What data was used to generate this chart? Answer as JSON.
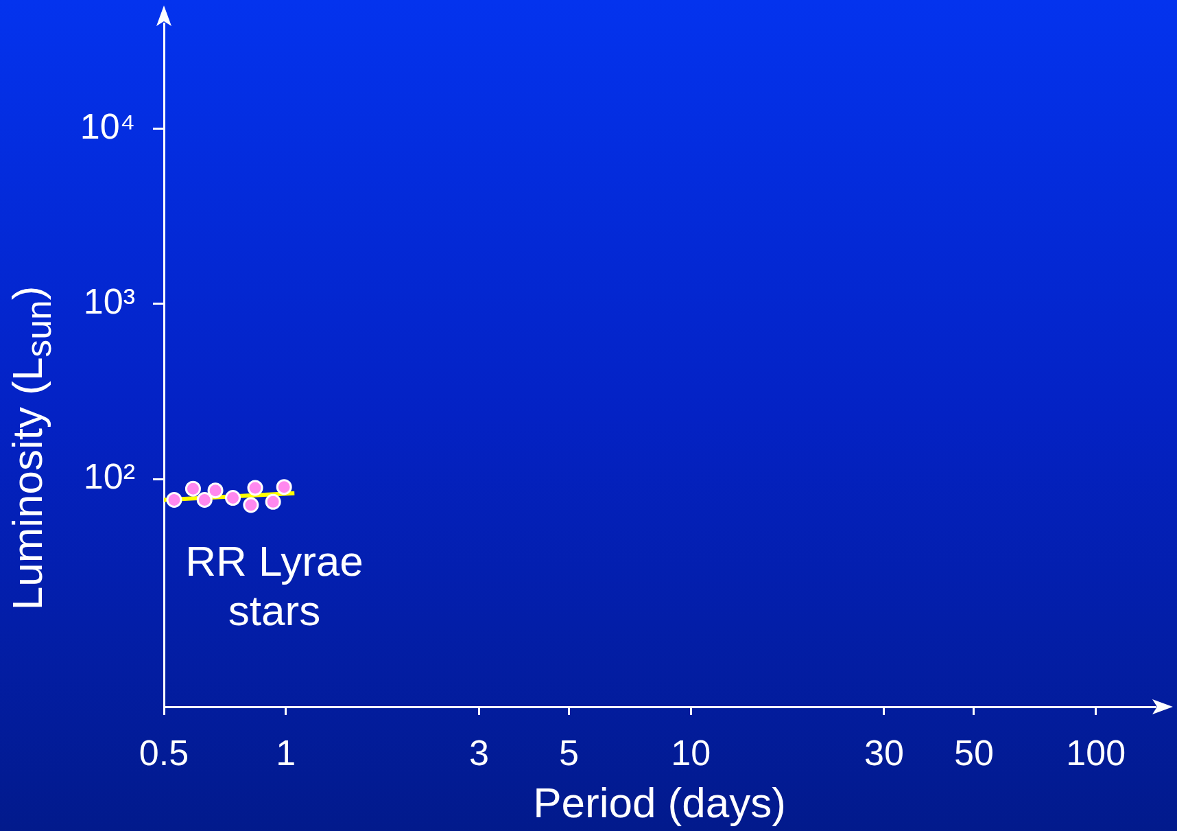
{
  "chart_data": {
    "type": "scatter",
    "xlabel": "Period (days)",
    "ylabel": "Luminosity (L$_{sun}$)",
    "log": "xy",
    "xlim": [
      0.5,
      140
    ],
    "xticks": [
      0.5,
      1,
      3,
      5,
      10,
      30,
      50,
      100
    ],
    "ylim": [
      5,
      40000
    ],
    "yticks": [
      {
        "value": 100,
        "label": "10²"
      },
      {
        "value": 1000,
        "label": "10³"
      },
      {
        "value": 10000,
        "label": "10⁴"
      }
    ],
    "series": [
      {
        "type": "scatter",
        "color": "#ff88ee",
        "marker": "circle",
        "x": [
          0.53,
          0.59,
          0.63,
          0.67,
          0.74,
          0.82,
          0.84,
          0.93,
          0.99
        ],
        "values": [
          76,
          88,
          76,
          86,
          78,
          71,
          89,
          74,
          90
        ]
      },
      {
        "type": "line",
        "color": "#ffff00",
        "marker": "none",
        "line_style": "solid",
        "x": [
          0.5,
          1.05
        ],
        "values": [
          76,
          83
        ]
      }
    ],
    "annotations": [
      "RR Lyrae stars"
    ]
  }
}
